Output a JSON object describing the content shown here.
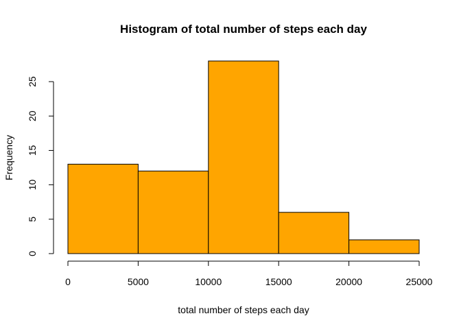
{
  "chart_data": {
    "type": "bar",
    "title": "Histogram of total number of steps each day",
    "xlabel": "total number of steps each day",
    "ylabel": "Frequency",
    "bins": [
      {
        "from": 0,
        "to": 5000,
        "count": 13
      },
      {
        "from": 5000,
        "to": 10000,
        "count": 12
      },
      {
        "from": 10000,
        "to": 15000,
        "count": 28
      },
      {
        "from": 15000,
        "to": 20000,
        "count": 6
      },
      {
        "from": 20000,
        "to": 25000,
        "count": 2
      }
    ],
    "xlim": [
      0,
      25000
    ],
    "ylim": [
      0,
      28
    ],
    "xticks": [
      0,
      5000,
      10000,
      15000,
      20000,
      25000
    ],
    "yticks": [
      0,
      5,
      10,
      15,
      20,
      25
    ],
    "bar_color": "#FFA500",
    "grid": false,
    "legend": "none"
  }
}
